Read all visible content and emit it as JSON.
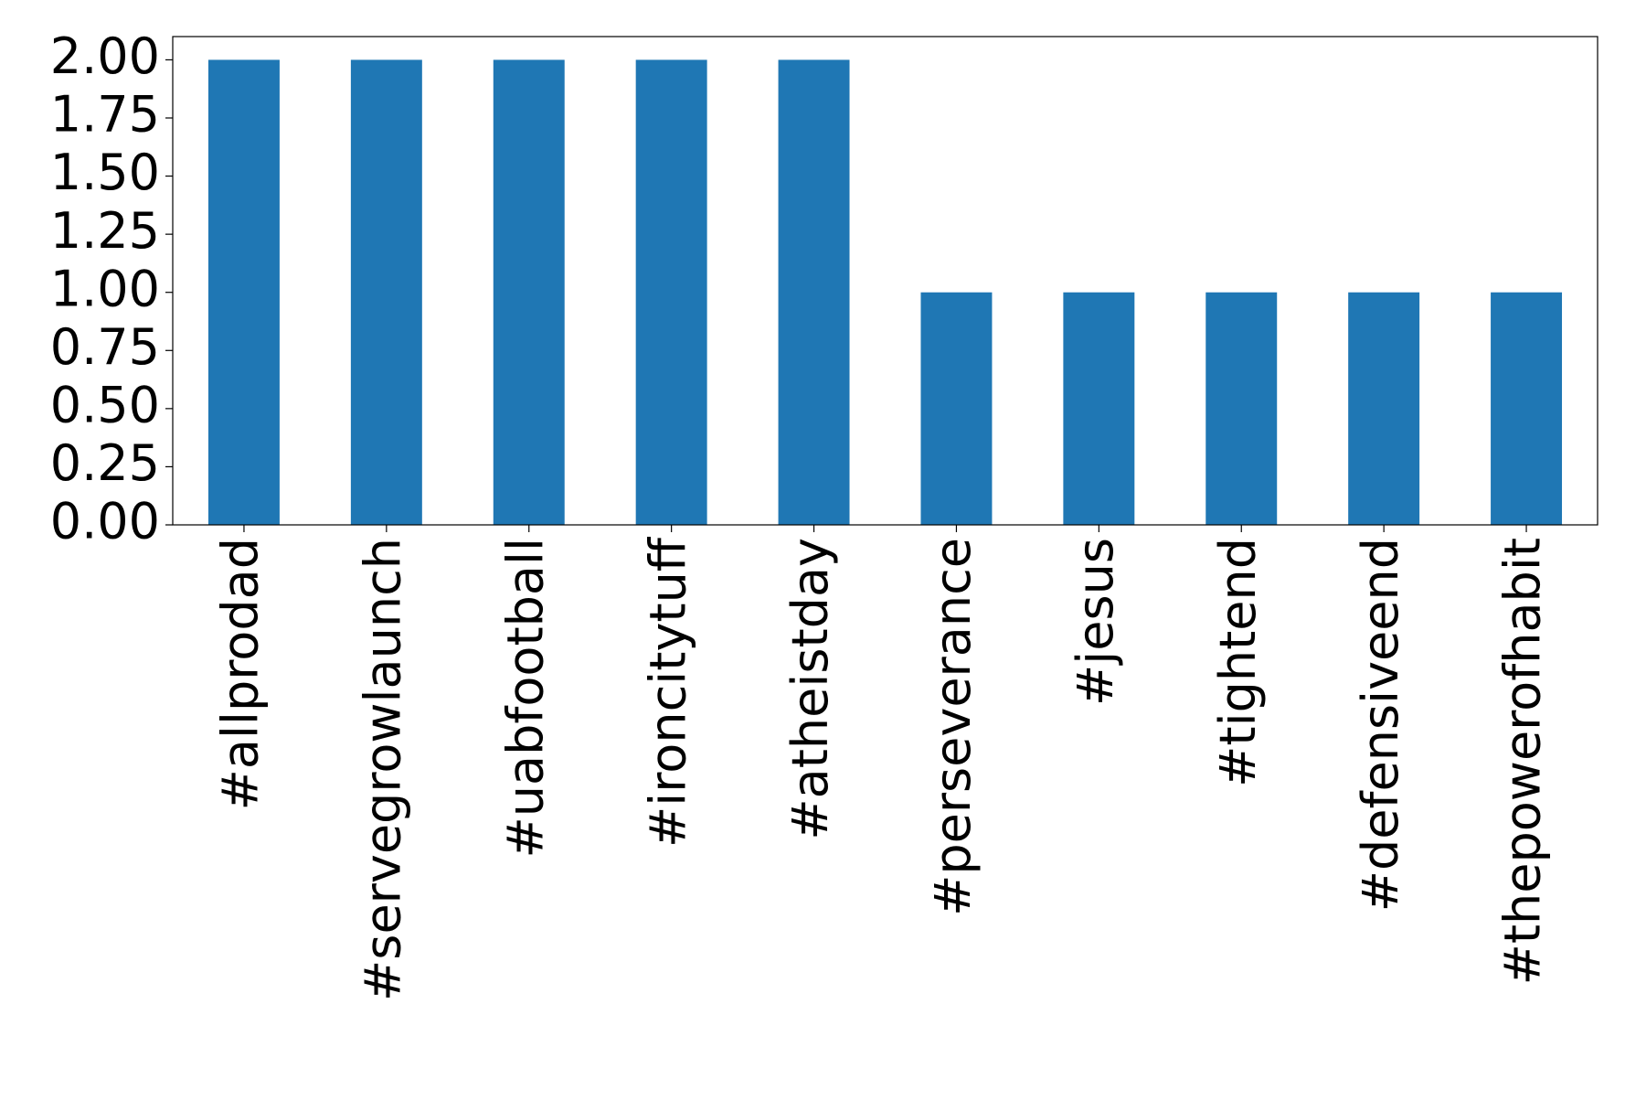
{
  "chart_data": {
    "type": "bar",
    "categories": [
      "#allprodad",
      "#servegrowlaunch",
      "#uabfootball",
      "#ironcitytuff",
      "#atheistday",
      "#perseverance",
      "#jesus",
      "#tightend",
      "#defensiveend",
      "#thepowerofhabit"
    ],
    "values": [
      2,
      2,
      2,
      2,
      2,
      1,
      1,
      1,
      1,
      1
    ],
    "color": "#1f77b4",
    "ylim": [
      0,
      2.1
    ],
    "yticks": [
      {
        "value": 0,
        "label": "0.00"
      },
      {
        "value": 0.25,
        "label": "0.25"
      },
      {
        "value": 0.5,
        "label": "0.50"
      },
      {
        "value": 0.75,
        "label": "0.75"
      },
      {
        "value": 1,
        "label": "1.00"
      },
      {
        "value": 1.25,
        "label": "1.25"
      },
      {
        "value": 1.5,
        "label": "1.50"
      },
      {
        "value": 1.75,
        "label": "1.75"
      },
      {
        "value": 2,
        "label": "2.00"
      }
    ],
    "grid": false
  }
}
